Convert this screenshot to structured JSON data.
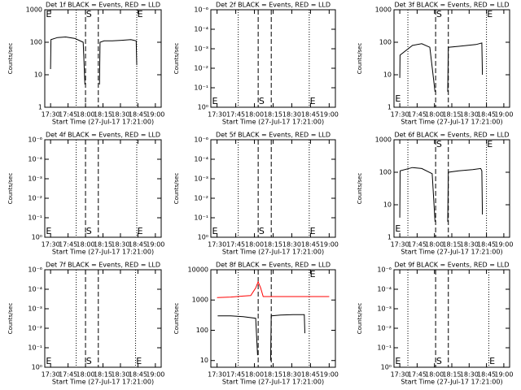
{
  "chart_data": [
    {
      "type": "line",
      "title": "Det 1f BLACK = Events, RED = LLD",
      "xlabel": "Start Time (27-Jul-17 17:21:00)",
      "ylabel": "Counts/sec",
      "log_y": true,
      "xlim": [
        4,
        104
      ],
      "xticks": [
        {
          "value": 9,
          "label": "17:30"
        },
        {
          "value": 24,
          "label": "17:45"
        },
        {
          "value": 39,
          "label": "18:00"
        },
        {
          "value": 54,
          "label": "18:15"
        },
        {
          "value": 69,
          "label": "18:30"
        },
        {
          "value": 84,
          "label": "18:45"
        },
        {
          "value": 99,
          "label": "19:00"
        }
      ],
      "ylim": [
        1,
        1000
      ],
      "yticks": [
        1,
        10,
        100,
        1000
      ],
      "vlines": [
        {
          "x": 31,
          "style": "dotted"
        },
        {
          "x": 39,
          "style": "dashed"
        },
        {
          "x": 50,
          "style": "dashed"
        },
        {
          "x": 83,
          "style": "dotted"
        }
      ],
      "annotations": [
        {
          "text": "E",
          "x": 5,
          "y": 700
        },
        {
          "text": "S",
          "x": 39.5,
          "y": 700
        },
        {
          "text": "E",
          "x": 83.5,
          "y": 700
        }
      ],
      "series": [
        {
          "color": "#000000",
          "x": [
            9,
            9.3,
            15,
            22,
            30,
            37,
            38.5,
            45,
            51,
            51.5,
            55,
            62,
            70,
            78,
            82.5,
            83
          ],
          "values": [
            15,
            120,
            140,
            145,
            130,
            100,
            5,
            null,
            5,
            100,
            110,
            110,
            115,
            120,
            110,
            20
          ]
        }
      ]
    },
    {
      "type": "line",
      "title": "Det 2f BLACK = Events, RED = LLD",
      "xlabel": "Start Time (27-Jul-17 17:21:00)",
      "ylabel": "Counts/sec",
      "log_y": false,
      "xlim": [
        4,
        104
      ],
      "xticks": [
        {
          "value": 9,
          "label": "17:30"
        },
        {
          "value": 24,
          "label": "17:45"
        },
        {
          "value": 39,
          "label": "18:00"
        },
        {
          "value": 54,
          "label": "18:15"
        },
        {
          "value": 69,
          "label": "18:30"
        },
        {
          "value": 84,
          "label": "18:45"
        },
        {
          "value": 99,
          "label": "19:00"
        }
      ],
      "ylim": [
        0,
        5
      ],
      "yticks": [
        {
          "value": 0,
          "label": "10⁰"
        },
        {
          "value": 1,
          "label": "10⁻¹"
        },
        {
          "value": 2,
          "label": "10⁻²"
        },
        {
          "value": 3,
          "label": "10⁻³"
        },
        {
          "value": 4,
          "label": "10⁻⁴"
        },
        {
          "value": 5,
          "label": "10⁻⁶"
        }
      ],
      "vlines": [
        {
          "x": 26,
          "style": "dotted"
        },
        {
          "x": 42,
          "style": "dashed"
        },
        {
          "x": 52.5,
          "style": "dashed"
        },
        {
          "x": 83,
          "style": "dotted"
        }
      ],
      "annotations": [
        {
          "text": "E",
          "x": 5,
          "y": 0.3
        },
        {
          "text": "S",
          "x": 42.5,
          "y": 0.3
        },
        {
          "text": "E",
          "x": 83.5,
          "y": 0.3
        }
      ],
      "series": []
    },
    {
      "type": "line",
      "title": "Det 3f BLACK = Events, RED = LLD",
      "xlabel": "Start Time (27-Jul-17 17:21:00)",
      "ylabel": "Counts/sec",
      "log_y": true,
      "xlim": [
        4,
        104
      ],
      "xticks": [
        {
          "value": 9,
          "label": "17:30"
        },
        {
          "value": 24,
          "label": "17:45"
        },
        {
          "value": 39,
          "label": "18:00"
        },
        {
          "value": 54,
          "label": "18:15"
        },
        {
          "value": 69,
          "label": "18:30"
        },
        {
          "value": 84,
          "label": "18:45"
        },
        {
          "value": 99,
          "label": "19:00"
        }
      ],
      "ylim": [
        1,
        1000
      ],
      "yticks": [
        1,
        10,
        100,
        1000
      ],
      "vlines": [
        {
          "x": 16,
          "style": "dotted"
        },
        {
          "x": 40,
          "style": "dashed"
        },
        {
          "x": 51,
          "style": "dashed"
        },
        {
          "x": 84,
          "style": "dotted"
        }
      ],
      "annotations": [
        {
          "text": "E",
          "x": 5,
          "y": 1.8
        },
        {
          "text": "S",
          "x": 40.5,
          "y": 700
        },
        {
          "text": "E",
          "x": 84.5,
          "y": 700
        }
      ],
      "series": [
        {
          "color": "#000000",
          "x": [
            9,
            9.2,
            20,
            28,
            35,
            39.5,
            45,
            50.5,
            51,
            60,
            75,
            80,
            80.5
          ],
          "values": [
            8,
            40,
            80,
            90,
            70,
            3,
            null,
            3,
            70,
            75,
            85,
            95,
            10
          ]
        }
      ]
    },
    {
      "type": "line",
      "title": "Det 4f BLACK = Events, RED = LLD",
      "xlabel": "Start Time (27-Jul-17 17:21:00)",
      "ylabel": "Counts/sec",
      "log_y": false,
      "xlim": [
        4,
        104
      ],
      "xticks": [
        {
          "value": 9,
          "label": "17:30"
        },
        {
          "value": 24,
          "label": "17:45"
        },
        {
          "value": 39,
          "label": "18:00"
        },
        {
          "value": 54,
          "label": "18:15"
        },
        {
          "value": 69,
          "label": "18:30"
        },
        {
          "value": 84,
          "label": "18:45"
        },
        {
          "value": 99,
          "label": "19:00"
        }
      ],
      "ylim": [
        0,
        5
      ],
      "yticks": [
        {
          "value": 0,
          "label": "10⁰"
        },
        {
          "value": 1,
          "label": "10⁻¹"
        },
        {
          "value": 2,
          "label": "10⁻²"
        },
        {
          "value": 3,
          "label": "10⁻³"
        },
        {
          "value": 4,
          "label": "10⁻⁴"
        },
        {
          "value": 5,
          "label": "10⁻⁶"
        }
      ],
      "vlines": [
        {
          "x": 31,
          "style": "dotted"
        },
        {
          "x": 39,
          "style": "dashed"
        },
        {
          "x": 50,
          "style": "dashed"
        },
        {
          "x": 83,
          "style": "dotted"
        }
      ],
      "annotations": [
        {
          "text": "E",
          "x": 5,
          "y": 0.3
        },
        {
          "text": "S",
          "x": 39.5,
          "y": 0.3
        },
        {
          "text": "E",
          "x": 83.5,
          "y": 0.3
        }
      ],
      "series": []
    },
    {
      "type": "line",
      "title": "Det 5f BLACK = Events, RED = LLD",
      "xlabel": "Start Time (27-Jul-17 17:21:00)",
      "ylabel": "Counts/sec",
      "log_y": false,
      "xlim": [
        4,
        104
      ],
      "xticks": [
        {
          "value": 9,
          "label": "17:30"
        },
        {
          "value": 24,
          "label": "17:45"
        },
        {
          "value": 39,
          "label": "18:00"
        },
        {
          "value": 54,
          "label": "18:15"
        },
        {
          "value": 69,
          "label": "18:30"
        },
        {
          "value": 84,
          "label": "18:45"
        },
        {
          "value": 99,
          "label": "19:00"
        }
      ],
      "ylim": [
        0,
        5
      ],
      "yticks": [
        {
          "value": 0,
          "label": "10⁰"
        },
        {
          "value": 1,
          "label": "10⁻¹"
        },
        {
          "value": 2,
          "label": "10⁻²"
        },
        {
          "value": 3,
          "label": "10⁻³"
        },
        {
          "value": 4,
          "label": "10⁻⁴"
        },
        {
          "value": 5,
          "label": "10⁻⁶"
        }
      ],
      "vlines": [
        {
          "x": 26,
          "style": "dotted"
        },
        {
          "x": 42,
          "style": "dashed"
        },
        {
          "x": 52.5,
          "style": "dashed"
        },
        {
          "x": 83,
          "style": "dotted"
        }
      ],
      "annotations": [
        {
          "text": "E",
          "x": 5,
          "y": 0.3
        },
        {
          "text": "S",
          "x": 42.5,
          "y": 0.3
        },
        {
          "text": "E",
          "x": 83.5,
          "y": 0.3
        }
      ],
      "series": []
    },
    {
      "type": "line",
      "title": "Det 6f BLACK = Events, RED = LLD",
      "xlabel": "Start Time (27-Jul-17 17:21:00)",
      "ylabel": "Counts/sec",
      "log_y": true,
      "xlim": [
        4,
        104
      ],
      "xticks": [
        {
          "value": 9,
          "label": "17:30"
        },
        {
          "value": 24,
          "label": "17:45"
        },
        {
          "value": 39,
          "label": "18:00"
        },
        {
          "value": 54,
          "label": "18:15"
        },
        {
          "value": 69,
          "label": "18:30"
        },
        {
          "value": 84,
          "label": "18:45"
        },
        {
          "value": 99,
          "label": "19:00"
        }
      ],
      "ylim": [
        1,
        1000
      ],
      "yticks": [
        1,
        10,
        100,
        1000
      ],
      "vlines": [
        {
          "x": 16,
          "style": "dotted"
        },
        {
          "x": 40,
          "style": "dashed"
        },
        {
          "x": 51,
          "style": "dashed"
        },
        {
          "x": 84,
          "style": "dotted"
        }
      ],
      "annotations": [
        {
          "text": "E",
          "x": 5,
          "y": 1.8
        },
        {
          "text": "S",
          "x": 40.5,
          "y": 700
        },
        {
          "text": "E",
          "x": 84.5,
          "y": 700
        }
      ],
      "series": [
        {
          "color": "#000000",
          "x": [
            9,
            9.3,
            20,
            28,
            37,
            39.5,
            45,
            50.5,
            51,
            60,
            72,
            79,
            80,
            80.5
          ],
          "values": [
            4,
            110,
            140,
            130,
            90,
            3,
            null,
            3,
            100,
            110,
            120,
            130,
            110,
            5
          ]
        }
      ]
    },
    {
      "type": "line",
      "title": "Det 7f BLACK = Events, RED = LLD",
      "xlabel": "Start Time (27-Jul-17 17:21:00)",
      "ylabel": "Counts/sec",
      "log_y": false,
      "xlim": [
        4,
        104
      ],
      "xticks": [
        {
          "value": 9,
          "label": "17:30"
        },
        {
          "value": 24,
          "label": "17:45"
        },
        {
          "value": 39,
          "label": "18:00"
        },
        {
          "value": 54,
          "label": "18:15"
        },
        {
          "value": 69,
          "label": "18:30"
        },
        {
          "value": 84,
          "label": "18:45"
        },
        {
          "value": 99,
          "label": "19:00"
        }
      ],
      "ylim": [
        0,
        5
      ],
      "yticks": [
        {
          "value": 0,
          "label": "10⁰"
        },
        {
          "value": 1,
          "label": "10⁻¹"
        },
        {
          "value": 2,
          "label": "10⁻²"
        },
        {
          "value": 3,
          "label": "10⁻³"
        },
        {
          "value": 4,
          "label": "10⁻⁴"
        },
        {
          "value": 5,
          "label": "10⁻⁶"
        }
      ],
      "vlines": [
        {
          "x": 31,
          "style": "dotted"
        },
        {
          "x": 39,
          "style": "dashed"
        },
        {
          "x": 50,
          "style": "dashed"
        },
        {
          "x": 82,
          "style": "dotted"
        }
      ],
      "annotations": [
        {
          "text": "E",
          "x": 5,
          "y": 0.3
        },
        {
          "text": "S",
          "x": 39.5,
          "y": 0.3
        },
        {
          "text": "E",
          "x": 82.5,
          "y": 0.3
        }
      ],
      "series": []
    },
    {
      "type": "line",
      "title": "Det 8f BLACK = Events, RED = LLD",
      "xlabel": "Start Time (27-Jul-17 17:21:00)",
      "ylabel": "Counts/sec",
      "log_y": true,
      "xlim": [
        4,
        104
      ],
      "xticks": [
        {
          "value": 9,
          "label": "17:30"
        },
        {
          "value": 24,
          "label": "17:45"
        },
        {
          "value": 39,
          "label": "18:00"
        },
        {
          "value": 54,
          "label": "18:15"
        },
        {
          "value": 69,
          "label": "18:30"
        },
        {
          "value": 84,
          "label": "18:45"
        },
        {
          "value": 99,
          "label": "19:00"
        }
      ],
      "ylim": [
        6,
        10000
      ],
      "yticks": [
        10,
        100,
        1000,
        10000
      ],
      "vlines": [
        {
          "x": 26,
          "style": "dotted"
        },
        {
          "x": 42,
          "style": "dashed"
        },
        {
          "x": 52.5,
          "style": "dashed"
        },
        {
          "x": 83,
          "style": "dotted"
        }
      ],
      "annotations": [
        {
          "text": "E",
          "x": 83.5,
          "y": 7000
        }
      ],
      "series": [
        {
          "color": "#ff0000",
          "x": [
            9,
            20,
            30,
            36,
            40,
            42,
            44,
            46,
            60,
            99
          ],
          "values": [
            1200,
            1250,
            1350,
            1400,
            2500,
            4000,
            2500,
            1300,
            1300,
            1300
          ]
        },
        {
          "color": "#000000",
          "x": [
            9.5,
            9.8,
            20,
            30,
            40,
            41.5,
            47,
            52,
            52.5,
            60,
            70,
            79,
            79.5
          ],
          "values": [
            300,
            300,
            300,
            280,
            250,
            15,
            null,
            10,
            300,
            320,
            330,
            330,
            80
          ]
        }
      ]
    },
    {
      "type": "line",
      "title": "Det 9f BLACK = Events, RED = LLD",
      "xlabel": "Start Time (27-Jul-17 17:21:00)",
      "ylabel": "Counts/sec",
      "log_y": false,
      "xlim": [
        4,
        104
      ],
      "xticks": [
        {
          "value": 9,
          "label": "17:30"
        },
        {
          "value": 24,
          "label": "17:45"
        },
        {
          "value": 39,
          "label": "18:00"
        },
        {
          "value": 54,
          "label": "18:15"
        },
        {
          "value": 69,
          "label": "18:30"
        },
        {
          "value": 84,
          "label": "18:45"
        },
        {
          "value": 99,
          "label": "19:00"
        }
      ],
      "ylim": [
        0,
        5
      ],
      "yticks": [
        {
          "value": 0,
          "label": "10⁰"
        },
        {
          "value": 1,
          "label": "10⁻¹"
        },
        {
          "value": 2,
          "label": "10⁻²"
        },
        {
          "value": 3,
          "label": "10⁻³"
        },
        {
          "value": 4,
          "label": "10⁻⁴"
        },
        {
          "value": 5,
          "label": "10⁻⁶"
        }
      ],
      "vlines": [
        {
          "x": 16,
          "style": "dotted"
        },
        {
          "x": 40,
          "style": "dashed"
        },
        {
          "x": 51,
          "style": "dashed"
        },
        {
          "x": 86,
          "style": "dotted"
        }
      ],
      "annotations": [
        {
          "text": "E",
          "x": 5,
          "y": 0.3
        },
        {
          "text": "S",
          "x": 40.5,
          "y": 0.3
        },
        {
          "text": "E",
          "x": 86.5,
          "y": 0.3
        }
      ],
      "series": []
    }
  ]
}
